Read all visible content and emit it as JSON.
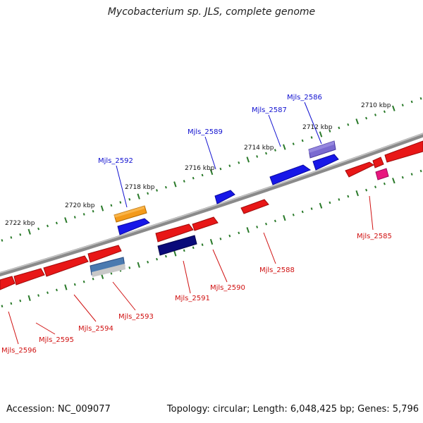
{
  "title": "Mycobacterium sp. JLS, complete genome",
  "footer": {
    "accession": "Accession: NC_009077",
    "topology": "Topology: circular; Length: 6,048,425 bp; Genes: 5,796"
  },
  "colors": {
    "backbone": "#808080",
    "forward_label": "#1010d0",
    "reverse_label": "#d01010",
    "tick": "#2a7a2a"
  },
  "kbp_labels": [
    "2710 kbp",
    "2712 kbp",
    "2714 kbp",
    "2716 kbp",
    "2718 kbp",
    "2720 kbp",
    "2722 kbp"
  ],
  "forward_genes": [
    "Mjls_2586",
    "Mjls_2587",
    "Mjls_2589",
    "Mjls_2592"
  ],
  "reverse_genes": [
    "Mjls_2585",
    "Mjls_2588",
    "Mjls_2590",
    "Mjls_2591",
    "Mjls_2593",
    "Mjls_2594",
    "Mjls_2595",
    "Mjls_2596"
  ]
}
